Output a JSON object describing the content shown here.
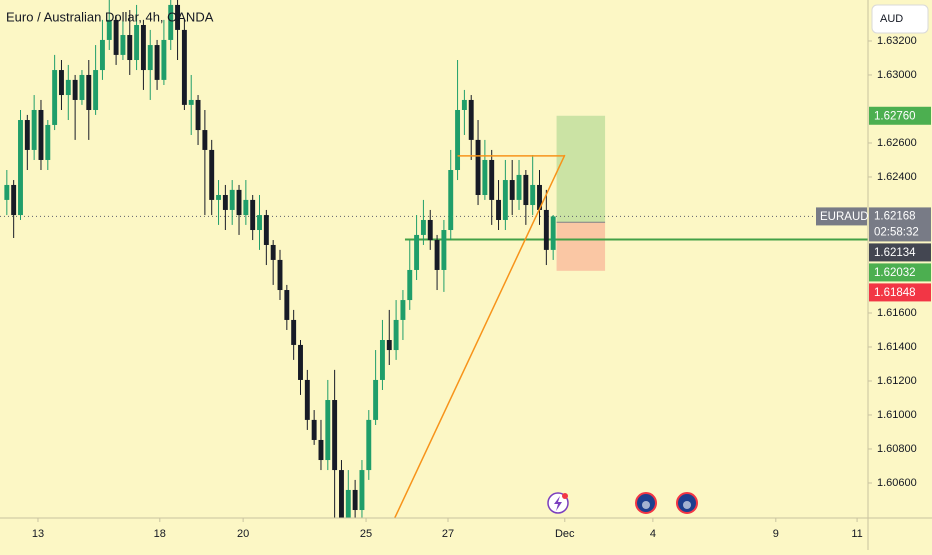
{
  "chart_data": {
    "type": "candlestick",
    "title": "Euro / Australian Dollar, 4h, OANDA",
    "currency": "AUD",
    "symbol": "EURAUD",
    "countdown": "02:58:32",
    "up_color": "#1f9e6a",
    "down_color": "#171b26",
    "open": [
      1.62265,
      1.62353,
      1.62176,
      1.62735,
      1.62559,
      1.62794,
      1.625,
      1.62706,
      1.63029,
      1.62882,
      1.62971,
      1.62853,
      1.63,
      1.62794,
      1.63029,
      1.63206,
      1.63324,
      1.63118,
      1.63235,
      1.63088,
      1.63294,
      1.63029,
      1.63176,
      1.62971,
      1.63206,
      1.63412,
      1.63265,
      1.62824,
      1.62853,
      1.62676,
      1.62559,
      1.62265,
      1.62294,
      1.62206,
      1.62324,
      1.62176,
      1.62265,
      1.62088,
      1.62176,
      1.62,
      1.61912,
      1.61735,
      1.61559,
      1.61412,
      1.61206,
      1.60971,
      1.60853,
      1.60735,
      1.61088,
      1.60676,
      1.60394,
      1.60559,
      1.60441,
      1.60676,
      1.60971,
      1.61206,
      1.61441,
      1.61382,
      1.61559,
      1.61676,
      1.61853,
      1.62059,
      1.62147,
      1.62029,
      1.61853,
      1.62088,
      1.62441,
      1.62794,
      1.62853,
      1.62618,
      1.62294,
      1.625,
      1.62265,
      1.62147,
      1.62382,
      1.62265,
      1.62412,
      1.62235,
      1.62353,
      1.62206,
      1.61971
    ],
    "high": [
      1.62441,
      1.62382,
      1.62794,
      1.62765,
      1.62882,
      1.62853,
      1.62735,
      1.63118,
      1.63088,
      1.63059,
      1.63,
      1.63029,
      1.63088,
      1.63176,
      1.63324,
      1.63441,
      1.63353,
      1.63324,
      1.63382,
      1.63412,
      1.63324,
      1.63265,
      1.63206,
      1.63324,
      1.63441,
      1.63441,
      1.63324,
      1.63,
      1.62882,
      1.62794,
      1.62618,
      1.62382,
      1.62353,
      1.62382,
      1.62353,
      1.62382,
      1.62294,
      1.62294,
      1.62206,
      1.62029,
      1.61971,
      1.61765,
      1.61618,
      1.61441,
      1.61265,
      1.61029,
      1.60971,
      1.61206,
      1.61265,
      1.60735,
      1.60676,
      1.60618,
      1.60735,
      1.61029,
      1.61382,
      1.61559,
      1.61618,
      1.61676,
      1.61735,
      1.62029,
      1.62176,
      1.62265,
      1.62206,
      1.62059,
      1.62147,
      1.62559,
      1.63088,
      1.62912,
      1.62882,
      1.62735,
      1.62618,
      1.62559,
      1.62382,
      1.625,
      1.625,
      1.625,
      1.62441,
      1.62529,
      1.62441,
      1.62324,
      1.62176
    ],
    "low": [
      1.62176,
      1.62041,
      1.62147,
      1.62441,
      1.625,
      1.62441,
      1.62441,
      1.62676,
      1.62794,
      1.62735,
      1.62618,
      1.62824,
      1.62618,
      1.62765,
      1.62971,
      1.63147,
      1.63059,
      1.63088,
      1.63,
      1.63029,
      1.62912,
      1.62853,
      1.62912,
      1.62941,
      1.63147,
      1.63088,
      1.62794,
      1.62647,
      1.62588,
      1.62176,
      1.62176,
      1.62118,
      1.62088,
      1.62118,
      1.62059,
      1.62118,
      1.62029,
      1.61971,
      1.61882,
      1.61765,
      1.61676,
      1.615,
      1.61324,
      1.61118,
      1.60912,
      1.60824,
      1.60676,
      1.60676,
      1.60394,
      1.60324,
      1.60324,
      1.60324,
      1.60382,
      1.60618,
      1.60941,
      1.61147,
      1.61294,
      1.61324,
      1.61441,
      1.61618,
      1.61794,
      1.62,
      1.61971,
      1.61735,
      1.61724,
      1.62029,
      1.62382,
      1.62647,
      1.625,
      1.62235,
      1.62265,
      1.62118,
      1.62088,
      1.62088,
      1.62176,
      1.62206,
      1.62118,
      1.62176,
      1.62118,
      1.61882,
      1.61912
    ],
    "close": [
      1.62353,
      1.62176,
      1.62735,
      1.62559,
      1.62794,
      1.625,
      1.62706,
      1.63029,
      1.62882,
      1.62971,
      1.62853,
      1.63,
      1.62794,
      1.63029,
      1.63206,
      1.63324,
      1.63118,
      1.63235,
      1.63088,
      1.63294,
      1.63029,
      1.63176,
      1.62971,
      1.63206,
      1.63412,
      1.63265,
      1.62824,
      1.62853,
      1.62676,
      1.62559,
      1.62265,
      1.62294,
      1.62206,
      1.62324,
      1.62176,
      1.62265,
      1.62088,
      1.62176,
      1.62,
      1.61912,
      1.61735,
      1.61559,
      1.61412,
      1.61206,
      1.60971,
      1.60853,
      1.60735,
      1.61088,
      1.60676,
      1.60394,
      1.60559,
      1.60441,
      1.60676,
      1.60971,
      1.61206,
      1.61441,
      1.61382,
      1.61559,
      1.61676,
      1.61853,
      1.62059,
      1.62147,
      1.62029,
      1.61853,
      1.62088,
      1.62441,
      1.62794,
      1.62853,
      1.62618,
      1.62294,
      1.625,
      1.62265,
      1.62147,
      1.62382,
      1.62265,
      1.62412,
      1.62235,
      1.62353,
      1.62206,
      1.61971,
      1.62168
    ],
    "xlim": [
      -1,
      126.1
    ],
    "ylim": [
      1.60394,
      1.63441
    ],
    "xticks": [
      {
        "value": 4.56,
        "label": "13"
      },
      {
        "value": 22.4,
        "label": "18"
      },
      {
        "value": 34.6,
        "label": "20"
      },
      {
        "value": 52.6,
        "label": "25"
      },
      {
        "value": 64.6,
        "label": "27"
      },
      {
        "value": 81.7,
        "label": "Dec"
      },
      {
        "value": 94.6,
        "label": "4"
      },
      {
        "value": 112.6,
        "label": "9"
      },
      {
        "value": 124.5,
        "label": "11"
      }
    ],
    "yticks": [
      {
        "value": 1.632,
        "label": "1.63200"
      },
      {
        "value": 1.63,
        "label": "1.63000"
      },
      {
        "value": 1.626,
        "label": "1.62600"
      },
      {
        "value": 1.624,
        "label": "1.62400"
      },
      {
        "value": 1.616,
        "label": "1.61600"
      },
      {
        "value": 1.614,
        "label": "1.61400"
      },
      {
        "value": 1.612,
        "label": "1.61200"
      },
      {
        "value": 1.61,
        "label": "1.61000"
      },
      {
        "value": 1.608,
        "label": "1.60800"
      },
      {
        "value": 1.606,
        "label": "1.60600"
      }
    ],
    "last_price": 1.62168,
    "position": {
      "target": {
        "value": 1.6276,
        "label": "1.62760"
      },
      "entry": 1.62134,
      "stop": 1.61848,
      "x_start": 80.5,
      "x_end": 87.6
    },
    "support_line": {
      "price": 1.62032,
      "x_start": 58.3,
      "color": "#43a047"
    },
    "trend_line": {
      "x": [
        56.8,
        81.7
      ],
      "y": [
        1.60394,
        1.62529
      ],
      "color": "#f7931a"
    },
    "resistance_line": {
      "price": 1.62524,
      "x_start": 66,
      "x_end": 81.7,
      "color": "#f7931a"
    }
  }
}
